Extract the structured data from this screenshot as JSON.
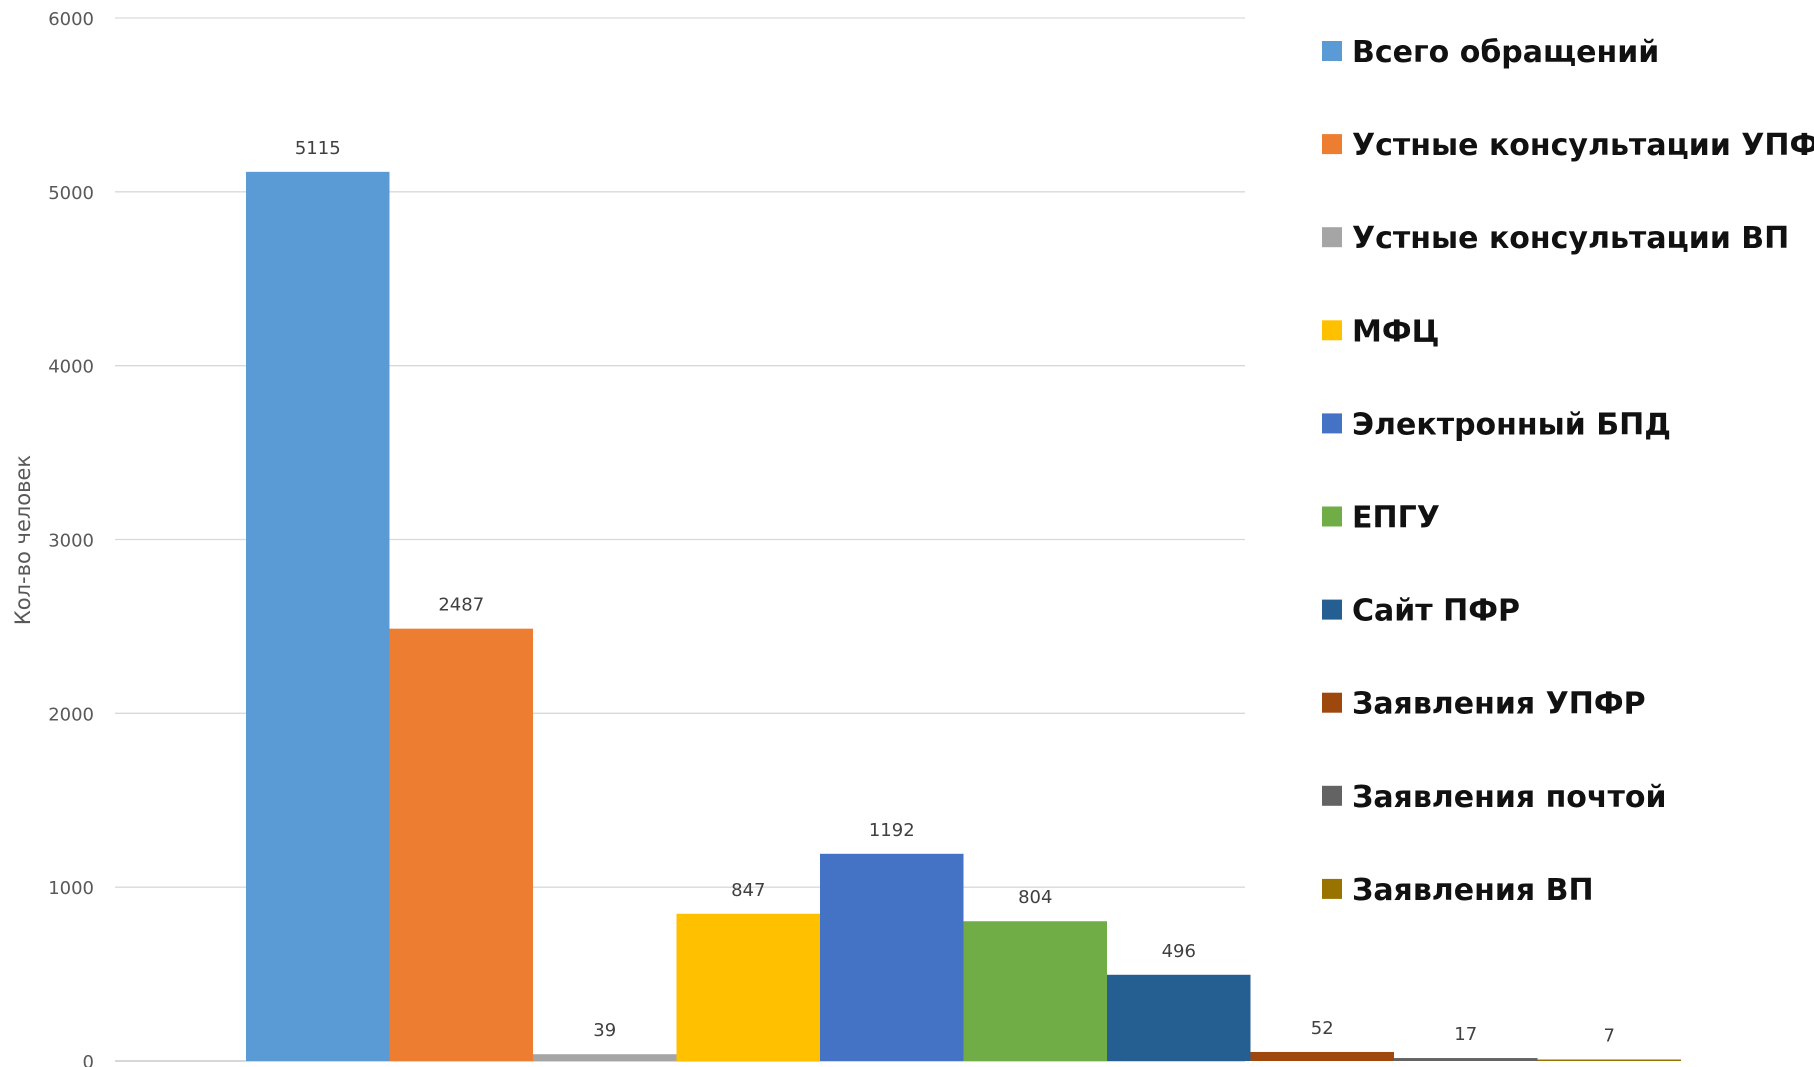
{
  "chart_data": {
    "type": "bar",
    "ylabel": "Кол-во человек",
    "xlabel": "",
    "title": "",
    "ylim": [
      0,
      6000
    ],
    "yticks": [
      0,
      1000,
      2000,
      3000,
      4000,
      5000,
      6000
    ],
    "grid": true,
    "legend_position": "right",
    "series": [
      {
        "name": "Всего обращений",
        "value": 5115,
        "color": "#5b9bd5"
      },
      {
        "name": "Устные консультации УПФР",
        "value": 2487,
        "color": "#ed7d31"
      },
      {
        "name": "Устные консультации ВП",
        "value": 39,
        "color": "#a5a5a5"
      },
      {
        "name": "МФЦ",
        "value": 847,
        "color": "#ffc000"
      },
      {
        "name": "Электронный БПД",
        "value": 1192,
        "color": "#4472c4"
      },
      {
        "name": "ЕПГУ",
        "value": 804,
        "color": "#70ad47"
      },
      {
        "name": "Сайт ПФР",
        "value": 496,
        "color": "#255e91"
      },
      {
        "name": "Заявления УПФР",
        "value": 52,
        "color": "#9e480e"
      },
      {
        "name": "Заявления почтой",
        "value": 17,
        "color": "#636363"
      },
      {
        "name": "Заявления ВП",
        "value": 7,
        "color": "#997300"
      }
    ]
  }
}
